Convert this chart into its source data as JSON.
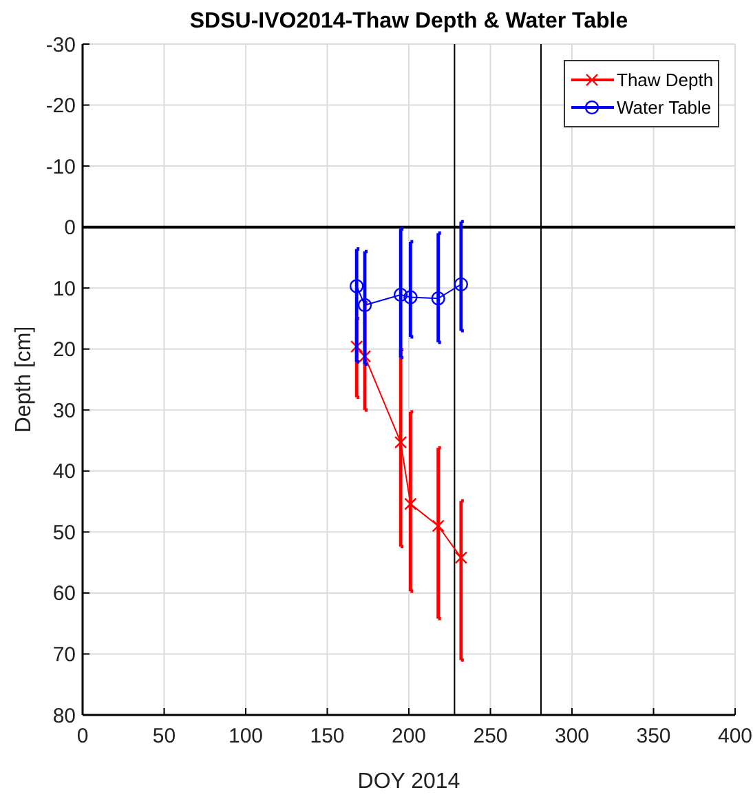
{
  "chart_data": {
    "type": "line",
    "title": "SDSU-IVO2014-Thaw Depth & Water Table",
    "xlabel": "DOY 2014",
    "ylabel": "Depth [cm]",
    "xlim": [
      0,
      400
    ],
    "xticks": [
      0,
      50,
      100,
      150,
      200,
      250,
      300,
      350,
      400
    ],
    "ylim": [
      80,
      -30
    ],
    "yticks": [
      -30,
      -20,
      -10,
      0,
      10,
      20,
      30,
      40,
      50,
      60,
      70,
      80
    ],
    "grid": true,
    "legend": "top right",
    "line_style": "solid",
    "ref_lines": [
      {
        "axis": "y",
        "value": 0,
        "color": "#000000"
      },
      {
        "axis": "x",
        "value": 228,
        "color": "#000000"
      },
      {
        "axis": "x",
        "value": 281,
        "color": "#000000"
      }
    ],
    "series": [
      {
        "name": "Thaw Depth",
        "color": "#ff0000",
        "marker": "cross",
        "x": [
          168,
          173,
          195,
          201,
          218,
          232
        ],
        "values": [
          19.6,
          21.2,
          35.3,
          45.4,
          49,
          54.2
        ],
        "errors": [
          [
            15,
            27.9
          ],
          [
            12.4,
            30
          ],
          [
            20.1,
            52.4
          ],
          [
            30.3,
            59.7
          ],
          [
            36.2,
            64.2
          ],
          [
            44.9,
            71
          ]
        ]
      },
      {
        "name": "Water Table",
        "color": "#0000ff",
        "marker": "circle",
        "x": [
          168,
          173,
          195,
          201,
          218,
          232
        ],
        "values": [
          9.7,
          12.8,
          11.1,
          11.5,
          11.7,
          9.4
        ],
        "errors": [
          [
            3.6,
            22.1
          ],
          [
            4,
            22.5
          ],
          [
            0.3,
            21.4
          ],
          [
            2.4,
            18
          ],
          [
            1,
            18.9
          ],
          [
            -0.9,
            17
          ]
        ]
      }
    ]
  }
}
